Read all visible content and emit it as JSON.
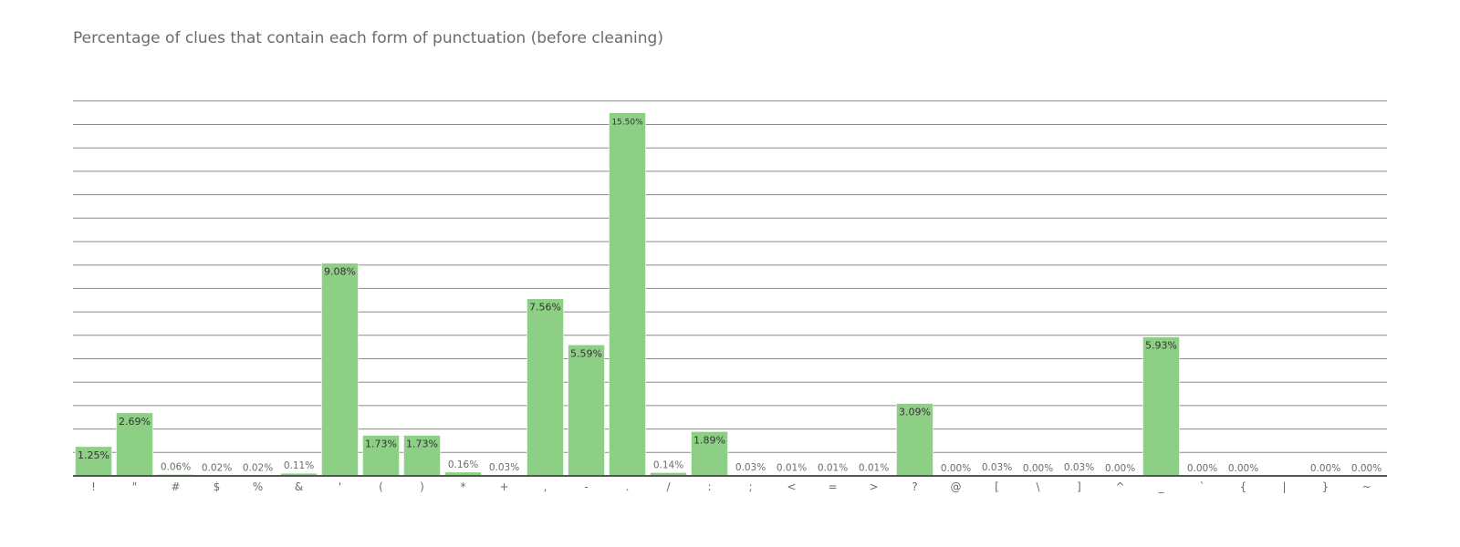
{
  "chart_data": {
    "type": "bar",
    "title": "Percentage of clues that contain each form of punctuation (before cleaning)",
    "xlabel": "",
    "ylabel": "",
    "ylim": [
      0,
      16
    ],
    "grid": true,
    "categories": [
      "!",
      "\"",
      "#",
      "$",
      "%",
      "&",
      "'",
      "(",
      ")",
      "*",
      "+",
      ",",
      "-",
      ".",
      "/",
      ":",
      ";",
      "<",
      "=",
      ">",
      "?",
      "@",
      "[",
      "\\",
      "]",
      "^",
      "_",
      "`",
      "{",
      "|",
      "}",
      "~"
    ],
    "values": [
      1.25,
      2.69,
      0.06,
      0.02,
      0.02,
      0.11,
      9.08,
      1.73,
      1.73,
      0.16,
      0.03,
      7.56,
      5.59,
      15.5,
      0.14,
      1.89,
      0.03,
      0.01,
      0.01,
      0.01,
      3.09,
      0.0,
      0.03,
      0.0,
      0.03,
      0.0,
      5.93,
      0.0,
      0.0,
      null,
      0.0,
      0.0
    ],
    "data_labels": [
      "1.25%",
      "2.69%",
      "0.06%",
      "0.02%",
      "0.02%",
      "0.11%",
      "9.08%",
      "1.73%",
      "1.73%",
      "0.16%",
      "0.03%",
      "7.56%",
      "5.59%",
      "15.50%",
      "0.14%",
      "1.89%",
      "0.03%",
      "0.01%",
      "0.01%",
      "0.01%",
      "3.09%",
      "0.00%",
      "0.03%",
      "0.00%",
      "0.03%",
      "0.00%",
      "5.93%",
      "0.00%",
      "0.00%",
      "",
      "0.00%",
      "0.00%"
    ],
    "colors": {
      "bar": "#8dd085",
      "grid": "#8a8a8a",
      "axis": "#555555",
      "text": "#6b6b6b",
      "label_inside": "#333333"
    }
  }
}
